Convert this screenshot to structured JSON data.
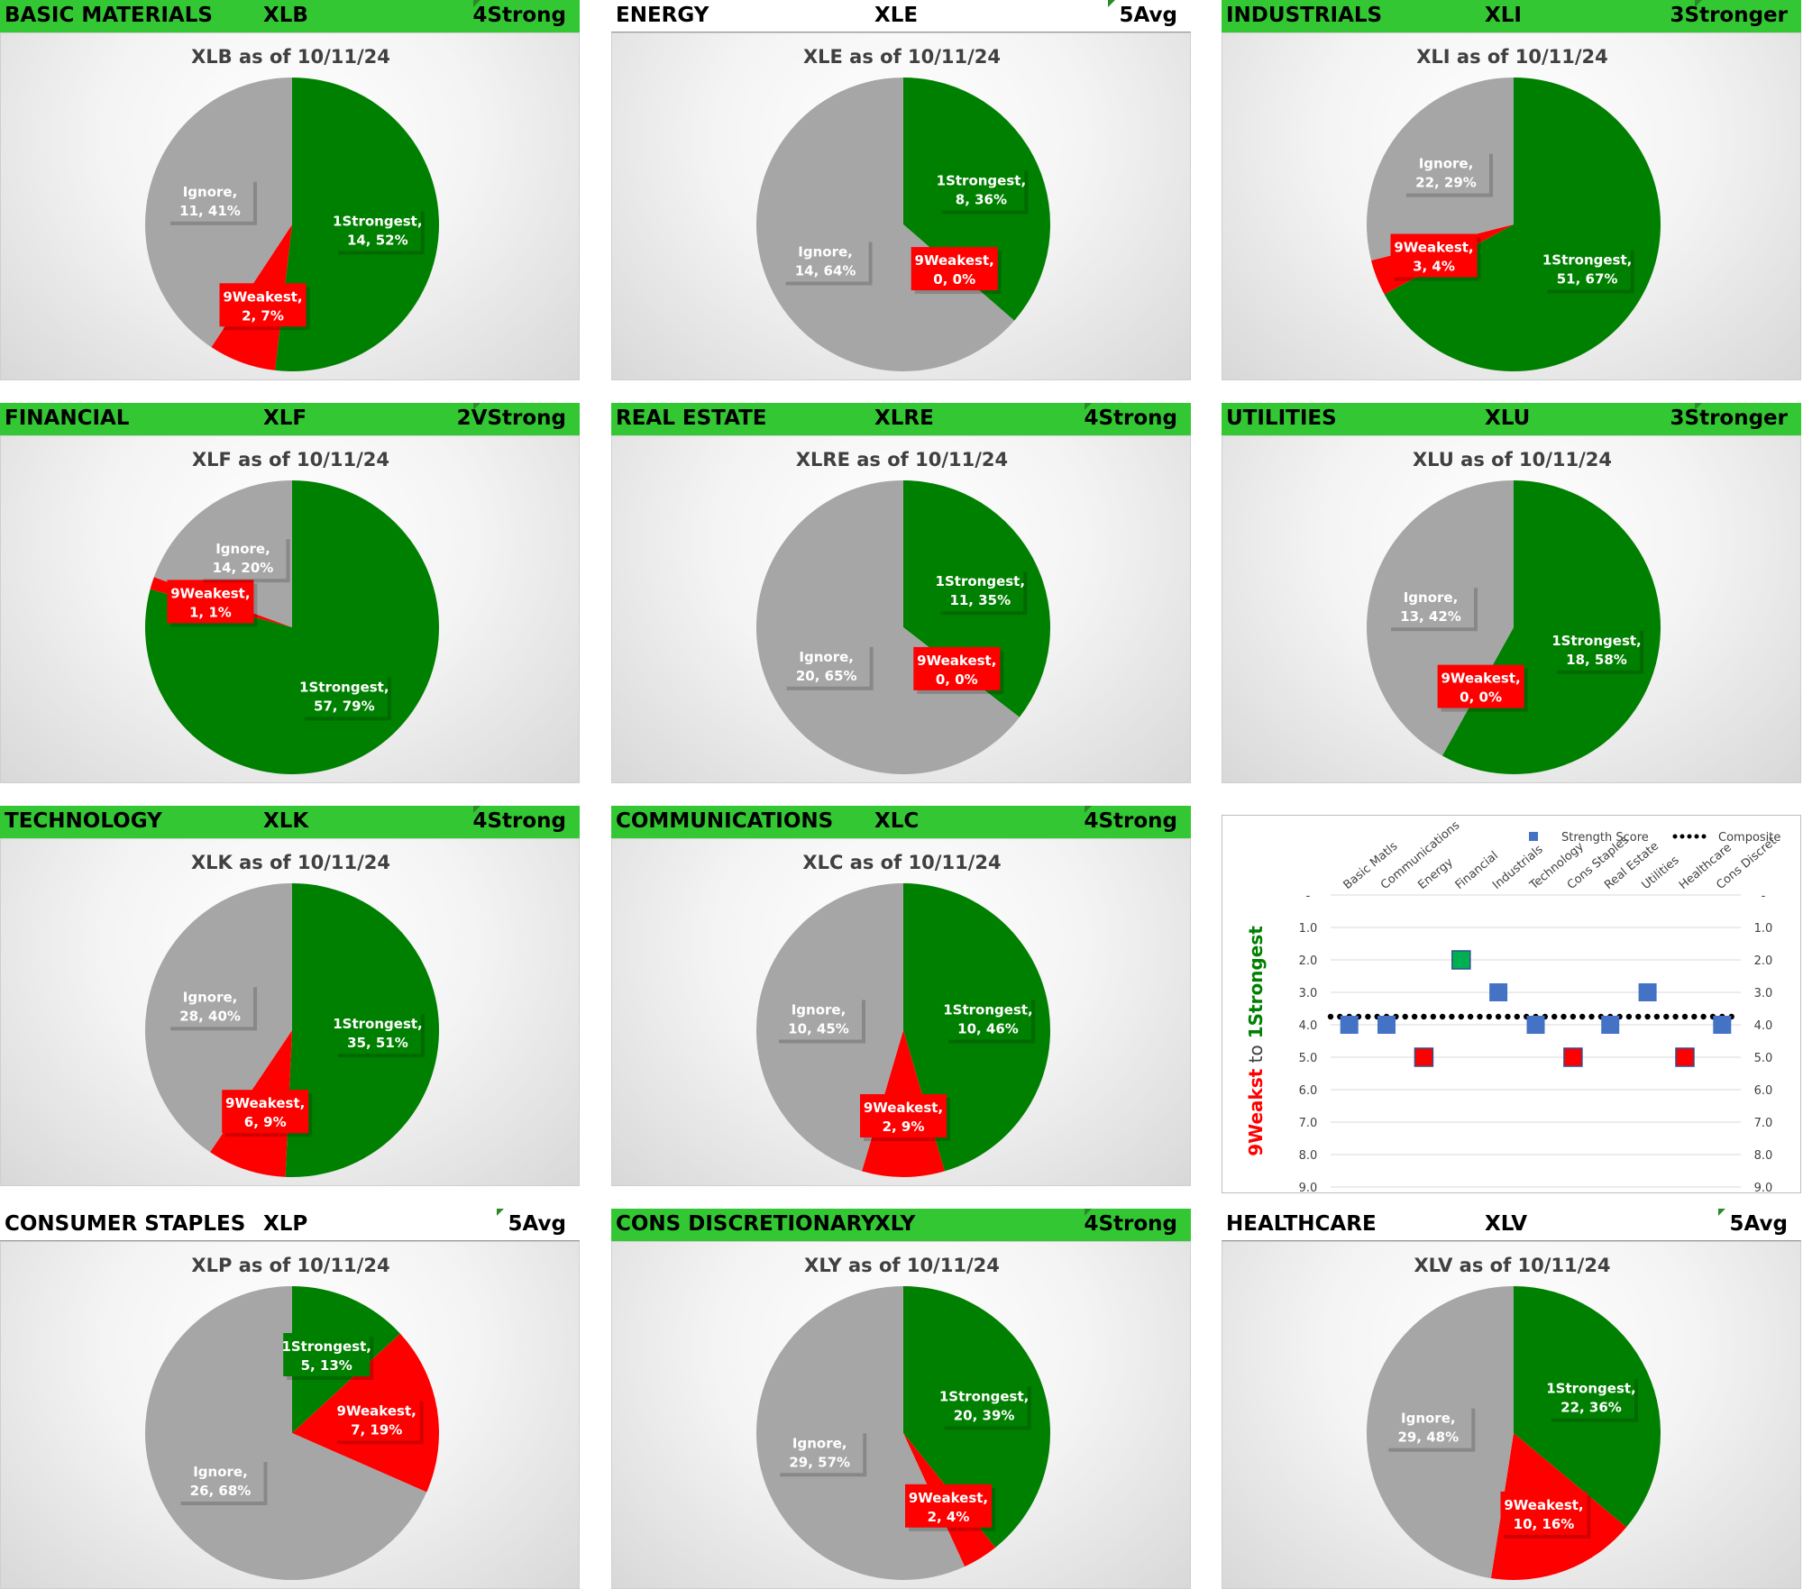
{
  "colors": {
    "strongest": "#008000",
    "weakest": "#ff0000",
    "ignore": "#a6a6a6",
    "header": "#33c833"
  },
  "panels": [
    {
      "name": "BASIC MATERIALS",
      "ticker": "XLB",
      "rank": "4Strong",
      "header_style": "green",
      "title": "XLB as of 10/11/24",
      "slices": [
        {
          "label": "1Strongest",
          "value": 14,
          "pct": "52%",
          "text": "1Strongest,|14, 52%"
        },
        {
          "label": "9Weakest",
          "value": 2,
          "pct": "7%",
          "text": "9Weakest,|2, 7%"
        },
        {
          "label": "Ignore",
          "value": 11,
          "pct": "41%",
          "text": "Ignore,|11, 41%"
        }
      ]
    },
    {
      "name": "ENERGY",
      "ticker": "XLE",
      "rank": "5Avg",
      "header_style": "plain",
      "title": "XLE as of 10/11/24",
      "slices": [
        {
          "label": "1Strongest",
          "value": 8,
          "pct": "36%",
          "text": "1Strongest,|8, 36%"
        },
        {
          "label": "9Weakest",
          "value": 0,
          "pct": "0%",
          "text": "9Weakest,|0, 0%"
        },
        {
          "label": "Ignore",
          "value": 14,
          "pct": "64%",
          "text": "Ignore,|14, 64%"
        }
      ]
    },
    {
      "name": "INDUSTRIALS",
      "ticker": "XLI",
      "rank": "3Stronger",
      "header_style": "green",
      "title": "XLI as of 10/11/24",
      "slices": [
        {
          "label": "1Strongest",
          "value": 51,
          "pct": "67%",
          "text": "1Strongest,|51, 67%"
        },
        {
          "label": "9Weakest",
          "value": 3,
          "pct": "4%",
          "text": "9Weakest,|3, 4%"
        },
        {
          "label": "Ignore",
          "value": 22,
          "pct": "29%",
          "text": "Ignore,|22, 29%"
        }
      ]
    },
    {
      "name": "FINANCIAL",
      "ticker": "XLF",
      "rank": "2VStrong",
      "header_style": "green",
      "title": "XLF as of 10/11/24",
      "slices": [
        {
          "label": "1Strongest",
          "value": 57,
          "pct": "79%",
          "text": "1Strongest,|57, 79%"
        },
        {
          "label": "9Weakest",
          "value": 1,
          "pct": "1%",
          "text": "9Weakest,|1, 1%"
        },
        {
          "label": "Ignore",
          "value": 14,
          "pct": "20%",
          "text": "Ignore,|14, 20%"
        }
      ]
    },
    {
      "name": "REAL ESTATE",
      "ticker": "XLRE",
      "rank": "4Strong",
      "header_style": "green",
      "title": "XLRE as of 10/11/24",
      "slices": [
        {
          "label": "1Strongest",
          "value": 11,
          "pct": "35%",
          "text": "1Strongest,|11, 35%"
        },
        {
          "label": "9Weakest",
          "value": 0,
          "pct": "0%",
          "text": "9Weakest,|0, 0%"
        },
        {
          "label": "Ignore",
          "value": 20,
          "pct": "65%",
          "text": "Ignore,|20, 65%"
        }
      ]
    },
    {
      "name": "UTILITIES",
      "ticker": "XLU",
      "rank": "3Stronger",
      "header_style": "green",
      "title": "XLU as of 10/11/24",
      "slices": [
        {
          "label": "1Strongest",
          "value": 18,
          "pct": "58%",
          "text": "1Strongest,|18, 58%"
        },
        {
          "label": "9Weakest",
          "value": 0,
          "pct": "0%",
          "text": "9Weakest,|0, 0%"
        },
        {
          "label": "Ignore",
          "value": 13,
          "pct": "42%",
          "text": "Ignore,|13, 42%"
        }
      ]
    },
    {
      "name": "TECHNOLOGY",
      "ticker": "XLK",
      "rank": "4Strong",
      "header_style": "green",
      "title": "XLK as of 10/11/24",
      "slices": [
        {
          "label": "1Strongest",
          "value": 35,
          "pct": "51%",
          "text": "1Strongest,|35, 51%"
        },
        {
          "label": "9Weakest",
          "value": 6,
          "pct": "9%",
          "text": "9Weakest,|6, 9%"
        },
        {
          "label": "Ignore",
          "value": 28,
          "pct": "40%",
          "text": "Ignore,|28, 40%"
        }
      ]
    },
    {
      "name": "COMMUNICATIONS",
      "ticker": "XLC",
      "rank": "4Strong",
      "header_style": "green",
      "title": "XLC as of 10/11/24",
      "slices": [
        {
          "label": "1Strongest",
          "value": 10,
          "pct": "46%",
          "text": "1Strongest,|10, 46%"
        },
        {
          "label": "9Weakest",
          "value": 2,
          "pct": "9%",
          "text": "9Weakest,|2, 9%"
        },
        {
          "label": "Ignore",
          "value": 10,
          "pct": "45%",
          "text": "Ignore,|10, 45%"
        }
      ]
    },
    {
      "name": "CONSUMER STAPLES",
      "ticker": "XLP",
      "rank": "5Avg",
      "header_style": "plain",
      "title": "XLP as of 10/11/24",
      "slices": [
        {
          "label": "1Strongest",
          "value": 5,
          "pct": "13%",
          "text": "1Strongest,|5, 13%"
        },
        {
          "label": "9Weakest",
          "value": 7,
          "pct": "19%",
          "text": "9Weakest,|7, 19%"
        },
        {
          "label": "Ignore",
          "value": 26,
          "pct": "68%",
          "text": "Ignore,|26, 68%"
        }
      ]
    },
    {
      "name": "CONS DISCRETIONARY",
      "ticker": "XLY",
      "rank": "4Strong",
      "header_style": "green",
      "title": "XLY as of 10/11/24",
      "slices": [
        {
          "label": "1Strongest",
          "value": 20,
          "pct": "39%",
          "text": "1Strongest,|20, 39%"
        },
        {
          "label": "9Weakest",
          "value": 2,
          "pct": "4%",
          "text": "9Weakest,|2, 4%"
        },
        {
          "label": "Ignore",
          "value": 29,
          "pct": "57%",
          "text": "Ignore,|29, 57%"
        }
      ]
    },
    {
      "name": "HEALTHCARE",
      "ticker": "XLV",
      "rank": "5Avg",
      "header_style": "plain",
      "title": "XLV as of 10/11/24",
      "slices": [
        {
          "label": "1Strongest",
          "value": 22,
          "pct": "36%",
          "text": "1Strongest,|22, 36%"
        },
        {
          "label": "9Weakest",
          "value": 10,
          "pct": "16%",
          "text": "9Weakest,|10, 16%"
        },
        {
          "label": "Ignore",
          "value": 29,
          "pct": "48%",
          "text": "Ignore,|29, 48%"
        }
      ]
    }
  ],
  "chart_data": [
    {
      "type": "pie",
      "title": "XLB as of 10/11/24",
      "categories": [
        "1Strongest",
        "9Weakest",
        "Ignore"
      ],
      "values": [
        14,
        2,
        11
      ]
    },
    {
      "type": "pie",
      "title": "XLE as of 10/11/24",
      "categories": [
        "1Strongest",
        "9Weakest",
        "Ignore"
      ],
      "values": [
        8,
        0,
        14
      ]
    },
    {
      "type": "pie",
      "title": "XLI as of 10/11/24",
      "categories": [
        "1Strongest",
        "9Weakest",
        "Ignore"
      ],
      "values": [
        51,
        3,
        22
      ]
    },
    {
      "type": "pie",
      "title": "XLF as of 10/11/24",
      "categories": [
        "1Strongest",
        "9Weakest",
        "Ignore"
      ],
      "values": [
        57,
        1,
        14
      ]
    },
    {
      "type": "pie",
      "title": "XLRE as of 10/11/24",
      "categories": [
        "1Strongest",
        "9Weakest",
        "Ignore"
      ],
      "values": [
        11,
        0,
        20
      ]
    },
    {
      "type": "pie",
      "title": "XLU as of 10/11/24",
      "categories": [
        "1Strongest",
        "9Weakest",
        "Ignore"
      ],
      "values": [
        18,
        0,
        13
      ]
    },
    {
      "type": "pie",
      "title": "XLK as of 10/11/24",
      "categories": [
        "1Strongest",
        "9Weakest",
        "Ignore"
      ],
      "values": [
        35,
        6,
        28
      ]
    },
    {
      "type": "pie",
      "title": "XLC as of 10/11/24",
      "categories": [
        "1Strongest",
        "9Weakest",
        "Ignore"
      ],
      "values": [
        10,
        2,
        10
      ]
    },
    {
      "type": "pie",
      "title": "XLP as of 10/11/24",
      "categories": [
        "1Strongest",
        "9Weakest",
        "Ignore"
      ],
      "values": [
        5,
        7,
        26
      ]
    },
    {
      "type": "pie",
      "title": "XLY as of 10/11/24",
      "categories": [
        "1Strongest",
        "9Weakest",
        "Ignore"
      ],
      "values": [
        20,
        2,
        29
      ]
    },
    {
      "type": "pie",
      "title": "XLV as of 10/11/24",
      "categories": [
        "1Strongest",
        "9Weakest",
        "Ignore"
      ],
      "values": [
        22,
        10,
        29
      ]
    },
    {
      "type": "scatter",
      "title": "",
      "categories": [
        "Basic Matls",
        "Communications",
        "Energy",
        "Financial",
        "Industrials",
        "Technology",
        "Cons Staples",
        "Real Estate",
        "Utilities",
        "Healthcare",
        "Cons Discret"
      ],
      "series": [
        {
          "name": "Strength Score",
          "values": [
            4,
            4,
            5,
            2,
            3,
            4,
            5,
            4,
            3,
            5,
            4
          ]
        },
        {
          "name": "Composite",
          "values": [
            3.75,
            3.75,
            3.75,
            3.75,
            3.75,
            3.75,
            3.75,
            3.75,
            3.75,
            3.75,
            3.75
          ]
        }
      ],
      "ylabel_parts": [
        "9Weakst",
        "to",
        "1Strongest"
      ],
      "yticks": [
        "-",
        "1.0",
        "2.0",
        "3.0",
        "4.0",
        "5.0",
        "6.0",
        "7.0",
        "8.0",
        "9.0"
      ],
      "ylim": [
        0,
        9
      ]
    }
  ]
}
